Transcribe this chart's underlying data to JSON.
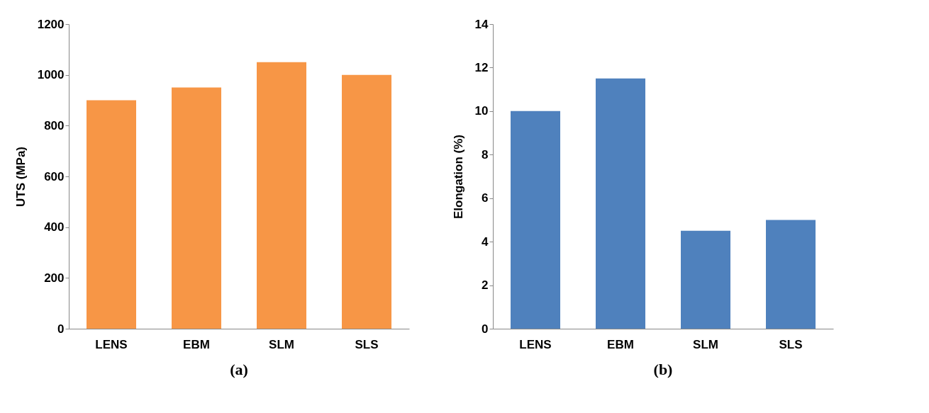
{
  "chart_data": [
    {
      "type": "bar",
      "categories": [
        "LENS",
        "EBM",
        "SLM",
        "SLS"
      ],
      "values": [
        900,
        950,
        1050,
        1000
      ],
      "color": "#f79646",
      "ylabel": "UTS (MPa)",
      "ylim": [
        0,
        1200
      ],
      "yticks": [
        0,
        200,
        400,
        600,
        800,
        1000,
        1200
      ],
      "grid": false,
      "annotations": [
        "(a)"
      ]
    },
    {
      "type": "bar",
      "categories": [
        "LENS",
        "EBM",
        "SLM",
        "SLS"
      ],
      "values": [
        10,
        11.5,
        4.5,
        5
      ],
      "color": "#4f81bd",
      "ylabel": "Elongation (%)",
      "ylim": [
        0,
        14
      ],
      "yticks": [
        0,
        2,
        4,
        6,
        8,
        10,
        12,
        14
      ],
      "grid": false,
      "annotations": [
        "(b)"
      ]
    }
  ]
}
